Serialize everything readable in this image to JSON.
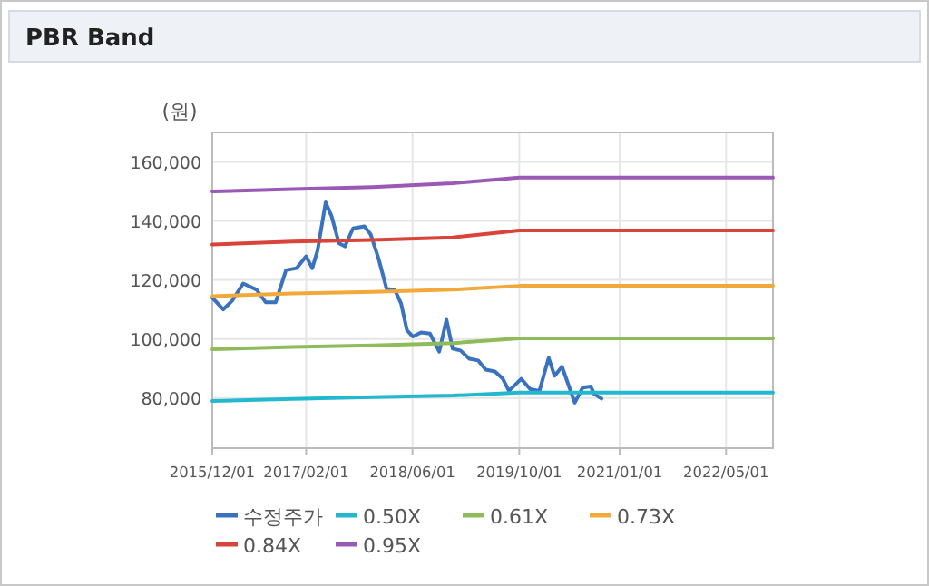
{
  "chart_data": {
    "type": "line",
    "title": "PBR Band",
    "ylabel": "(원)",
    "xlim": [
      "2015-12-01",
      "2022-12-01"
    ],
    "ylim": [
      63000,
      170000
    ],
    "xticks": [
      {
        "value": "2015-12-01",
        "label": "2015/12/01"
      },
      {
        "value": "2017-02-01",
        "label": "2017/02/01"
      },
      {
        "value": "2018-06-01",
        "label": "2018/06/01"
      },
      {
        "value": "2019-10-01",
        "label": "2019/10/01"
      },
      {
        "value": "2021-01-01",
        "label": "2021/01/01"
      },
      {
        "value": "2022-05-01",
        "label": "2022/05/01"
      }
    ],
    "yticks": [
      {
        "value": 80000,
        "label": "80,000"
      },
      {
        "value": 100000,
        "label": "100,000"
      },
      {
        "value": 120000,
        "label": "120,000"
      },
      {
        "value": 140000,
        "label": "140,000"
      },
      {
        "value": 160000,
        "label": "160,000"
      }
    ],
    "grid": true,
    "legend": "bottom",
    "marker": "none",
    "line_style": "solid",
    "series": [
      {
        "name": "수정주가",
        "color": "#3a72c0",
        "x": [
          "2015-12-01",
          "2016-01-20",
          "2016-03-01",
          "2016-04-20",
          "2016-06-20",
          "2016-08-01",
          "2016-09-15",
          "2016-11-01",
          "2016-12-20",
          "2017-02-01",
          "2017-03-01",
          "2017-03-25",
          "2017-05-01",
          "2017-05-28",
          "2017-07-01",
          "2017-07-28",
          "2017-09-03",
          "2017-10-25",
          "2017-11-22",
          "2017-12-28",
          "2018-02-03",
          "2018-03-12",
          "2018-04-10",
          "2018-05-07",
          "2018-06-03",
          "2018-07-10",
          "2018-08-20",
          "2018-10-01",
          "2018-11-03",
          "2018-12-01",
          "2019-01-06",
          "2019-02-15",
          "2019-03-28",
          "2019-05-01",
          "2019-06-12",
          "2019-07-18",
          "2019-08-15",
          "2019-10-10",
          "2019-11-20",
          "2020-01-01",
          "2020-02-12",
          "2020-03-10",
          "2020-04-13",
          "2020-06-10",
          "2020-07-16",
          "2020-08-22",
          "2020-09-06",
          "2020-10-10"
        ],
        "values": [
          114000,
          110000,
          113000,
          118800,
          116700,
          112400,
          112400,
          123300,
          124000,
          128000,
          124000,
          130000,
          146300,
          141600,
          132400,
          131400,
          137500,
          138200,
          135500,
          127300,
          117000,
          116700,
          112000,
          102900,
          100800,
          102200,
          101800,
          95700,
          106500,
          96700,
          96100,
          93300,
          92700,
          89600,
          89000,
          86500,
          82400,
          86500,
          83000,
          82400,
          93600,
          87500,
          90600,
          78400,
          83500,
          83900,
          81400,
          79800
        ]
      },
      {
        "name": "0.50X",
        "color": "#22b8cf",
        "x": [
          "2015-12-01",
          "2016-12-01",
          "2017-12-01",
          "2018-12-01",
          "2019-10-01",
          "2022-12-01"
        ],
        "values": [
          79000,
          79700,
          80300,
          80800,
          81800,
          81800
        ]
      },
      {
        "name": "0.61X",
        "color": "#8fbc5a",
        "x": [
          "2015-12-01",
          "2016-12-01",
          "2017-12-01",
          "2018-12-01",
          "2019-10-01",
          "2022-12-01"
        ],
        "values": [
          96500,
          97300,
          97800,
          98600,
          100200,
          100200
        ]
      },
      {
        "name": "0.73X",
        "color": "#f2a93b",
        "x": [
          "2015-12-01",
          "2016-12-01",
          "2017-12-01",
          "2018-12-01",
          "2019-10-01",
          "2022-12-01"
        ],
        "values": [
          114500,
          115400,
          116000,
          116700,
          118000,
          118000
        ]
      },
      {
        "name": "0.84X",
        "color": "#d9443a",
        "x": [
          "2015-12-01",
          "2016-12-01",
          "2017-12-01",
          "2018-12-01",
          "2019-10-01",
          "2022-12-01"
        ],
        "values": [
          132000,
          133000,
          133600,
          134400,
          136800,
          136800
        ]
      },
      {
        "name": "0.95X",
        "color": "#9b59b6",
        "x": [
          "2015-12-01",
          "2016-12-01",
          "2017-12-01",
          "2018-12-01",
          "2019-10-01",
          "2022-12-01"
        ],
        "values": [
          150000,
          150800,
          151500,
          152800,
          154700,
          154700
        ]
      }
    ]
  }
}
